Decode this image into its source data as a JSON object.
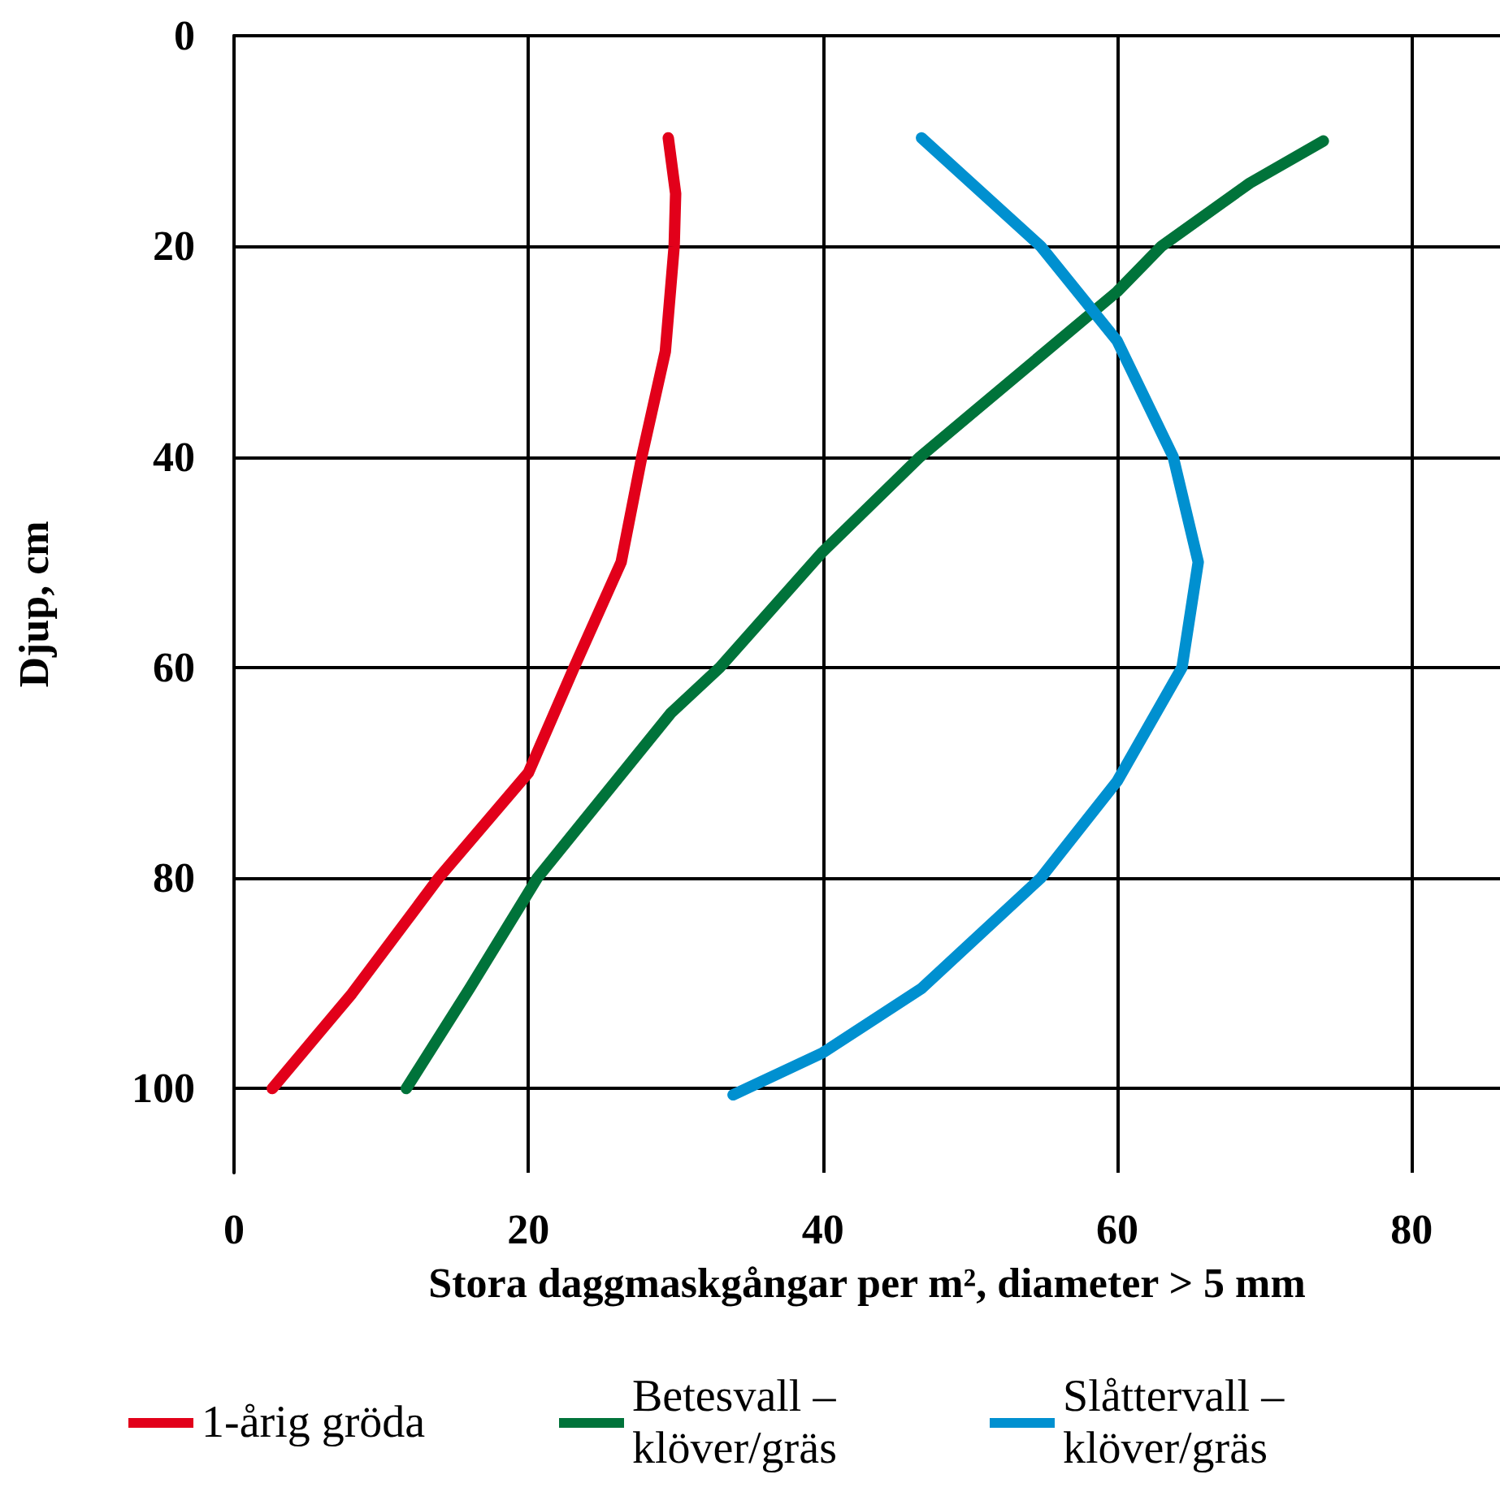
{
  "chart_data": {
    "type": "line",
    "xlabel": "Stora daggmaskgångar per m², diameter > 5 mm",
    "ylabel": "Djup, cm",
    "xlim": [
      0,
      86
    ],
    "xticks": [
      0,
      20,
      40,
      60,
      80
    ],
    "ylim": [
      108,
      0
    ],
    "yticks": [
      0,
      20,
      40,
      60,
      80,
      100
    ],
    "grid": true,
    "legend": "bottom",
    "marker": "none",
    "line_style": "solid",
    "series": [
      {
        "name": "1-årig gröda",
        "color": "#e2001a",
        "x": [
          29.5,
          30,
          29.9,
          29.3,
          27.7,
          26.3,
          23.1,
          20,
          13.9,
          8,
          2.6
        ],
        "values": [
          9.7,
          15,
          20,
          30,
          40,
          50,
          60,
          70,
          80,
          91,
          100
        ]
      },
      {
        "name": "Betesvall – klöver/gräs",
        "color": "#00733a",
        "x": [
          74,
          69,
          63,
          60,
          46.6,
          40,
          33,
          29.7,
          20.6,
          16,
          11.7
        ],
        "values": [
          10,
          14,
          20,
          24.3,
          40,
          49,
          60,
          64.3,
          80,
          90.5,
          100
        ]
      },
      {
        "name": "Slåttervall – klöver/gräs",
        "color": "#0090d0",
        "x": [
          46.7,
          54.8,
          60,
          63.8,
          65.5,
          64.4,
          60,
          54.8,
          46.7,
          40,
          33.9
        ],
        "values": [
          9.7,
          20,
          29,
          40,
          50,
          60,
          70.8,
          80,
          90.5,
          96.6,
          100.6
        ]
      }
    ]
  }
}
